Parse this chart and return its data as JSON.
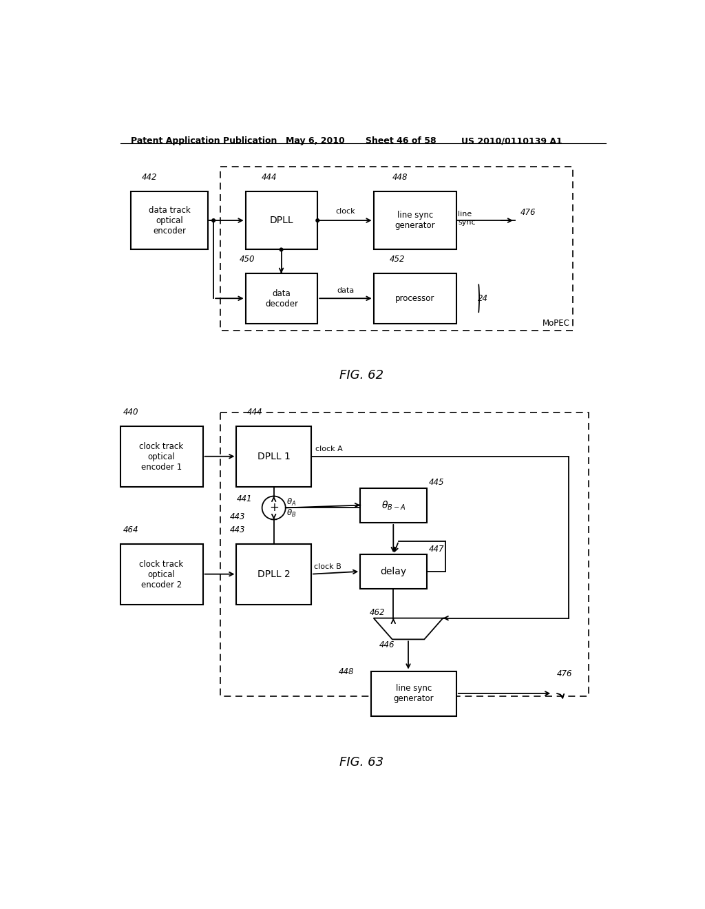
{
  "bg_color": "#ffffff",
  "header_text": "Patent Application Publication",
  "header_date": "May 6, 2010",
  "header_sheet": "Sheet 46 of 58",
  "header_patent": "US 2010/0110139 A1",
  "fig62_caption": "FIG. 62",
  "fig63_caption": "FIG. 63"
}
